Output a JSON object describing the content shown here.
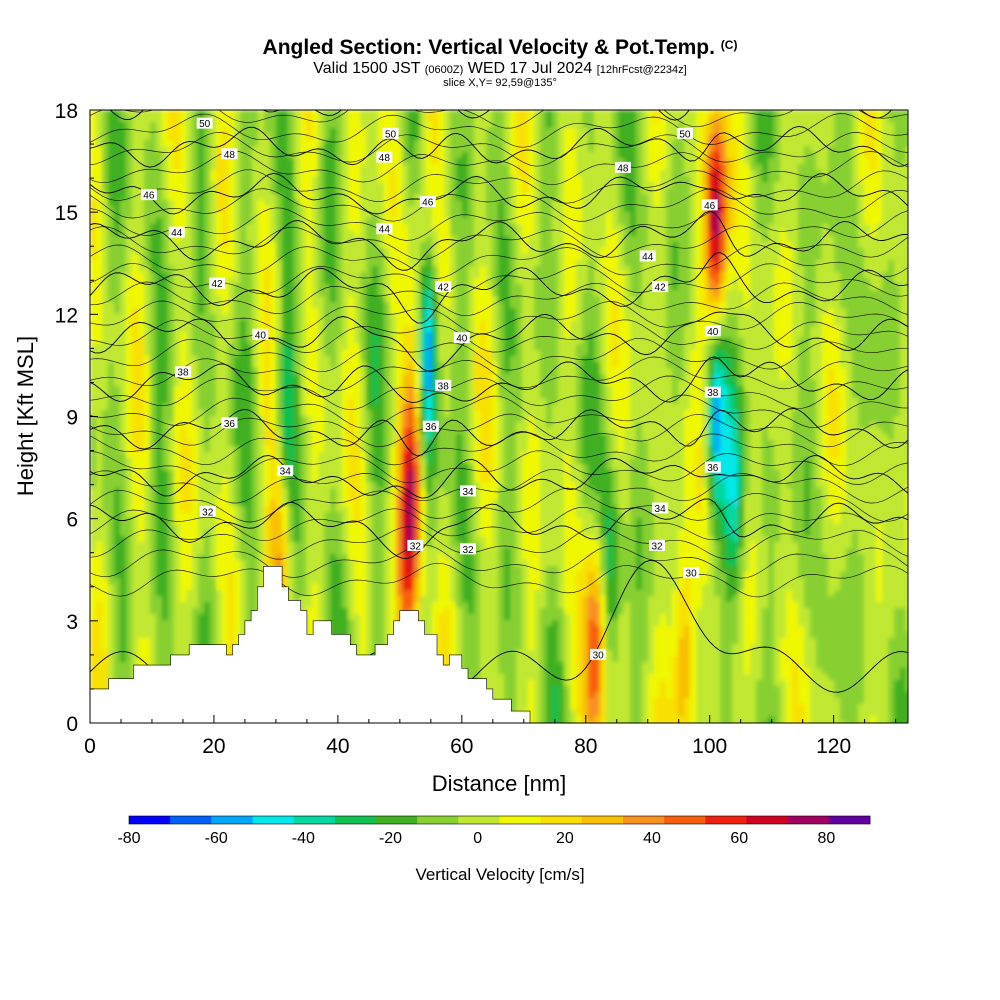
{
  "header": {
    "title": "Angled Section: Vertical Velocity & Pot.Temp.",
    "title_mark": "(C)",
    "valid_prefix": "Valid 1500 JST",
    "valid_zulu": "(0600Z)",
    "valid_date": "WED 17 Jul 2024",
    "forecast": "[12hrFcst@2234z]",
    "slice": "slice X,Y= 92,59@135°"
  },
  "chart_data": {
    "type": "heatmap",
    "xlabel": "Distance [nm]",
    "ylabel": "Height [Kft MSL]",
    "xlim": [
      0,
      132
    ],
    "ylim": [
      0,
      18
    ],
    "x_ticks": [
      0,
      20,
      40,
      60,
      80,
      100,
      120
    ],
    "y_ticks": [
      0,
      3,
      6,
      9,
      12,
      15,
      18
    ],
    "colorbar": {
      "label": "Vertical Velocity [cm/s]",
      "bounds": [
        -80,
        90
      ],
      "step": 10,
      "tick_labels": [
        -80,
        -60,
        -40,
        -20,
        0,
        20,
        40,
        60,
        80
      ],
      "colors": [
        "#0000ff",
        "#0060ff",
        "#00a8ff",
        "#00e8e8",
        "#00d8a0",
        "#10c050",
        "#40b020",
        "#88d030",
        "#c0e830",
        "#f0f800",
        "#f8e000",
        "#f8c000",
        "#f89020",
        "#f86010",
        "#f02010",
        "#d00020",
        "#a00060",
        "#6000a0"
      ]
    },
    "terrain": [
      [
        0,
        1
      ],
      [
        3,
        1
      ],
      [
        3,
        1.3
      ],
      [
        7,
        1.3
      ],
      [
        7,
        1.7
      ],
      [
        13,
        1.7
      ],
      [
        13,
        2
      ],
      [
        16,
        2
      ],
      [
        16,
        2.3
      ],
      [
        22,
        2.3
      ],
      [
        22,
        2
      ],
      [
        23,
        2
      ],
      [
        23,
        2.3
      ],
      [
        24,
        2.3
      ],
      [
        24,
        2.6
      ],
      [
        25,
        2.6
      ],
      [
        25,
        3
      ],
      [
        26,
        3
      ],
      [
        26,
        3.3
      ],
      [
        27,
        3.3
      ],
      [
        27,
        4
      ],
      [
        28,
        4
      ],
      [
        28,
        4.6
      ],
      [
        31,
        4.6
      ],
      [
        31,
        4
      ],
      [
        32,
        4
      ],
      [
        32,
        3.6
      ],
      [
        34,
        3.6
      ],
      [
        34,
        3.3
      ],
      [
        35,
        3.3
      ],
      [
        35,
        2.6
      ],
      [
        36,
        2.6
      ],
      [
        36,
        3
      ],
      [
        39,
        3
      ],
      [
        39,
        2.6
      ],
      [
        42,
        2.6
      ],
      [
        42,
        2.3
      ],
      [
        43,
        2.3
      ],
      [
        43,
        2
      ],
      [
        46,
        2
      ],
      [
        46,
        2.3
      ],
      [
        48,
        2.3
      ],
      [
        48,
        2.6
      ],
      [
        49,
        2.6
      ],
      [
        49,
        3
      ],
      [
        50,
        3
      ],
      [
        50,
        3.3
      ],
      [
        53,
        3.3
      ],
      [
        53,
        3
      ],
      [
        54,
        3
      ],
      [
        54,
        2.6
      ],
      [
        56,
        2.6
      ],
      [
        56,
        2
      ],
      [
        57,
        2
      ],
      [
        57,
        1.7
      ],
      [
        58,
        1.7
      ],
      [
        58,
        2
      ],
      [
        60,
        2
      ],
      [
        60,
        1.6
      ],
      [
        61,
        1.6
      ],
      [
        61,
        1.3
      ],
      [
        64,
        1.3
      ],
      [
        64,
        1
      ],
      [
        65,
        1
      ],
      [
        65,
        0.7
      ],
      [
        68,
        0.7
      ],
      [
        68,
        0.35
      ],
      [
        71,
        0.35
      ],
      [
        71,
        0
      ]
    ],
    "theta_contours": [
      30,
      32,
      34,
      36,
      38,
      40,
      42,
      44,
      46,
      48,
      50
    ],
    "theta_labels": [
      {
        "v": "50",
        "x": 18.5,
        "y": 17.6
      },
      {
        "v": "48",
        "x": 22.5,
        "y": 16.7
      },
      {
        "v": "46",
        "x": 9.5,
        "y": 15.5
      },
      {
        "v": "44",
        "x": 14,
        "y": 14.4
      },
      {
        "v": "42",
        "x": 20.5,
        "y": 12.9
      },
      {
        "v": "40",
        "x": 27.5,
        "y": 11.4
      },
      {
        "v": "38",
        "x": 15,
        "y": 10.3
      },
      {
        "v": "36",
        "x": 22.5,
        "y": 8.8
      },
      {
        "v": "34",
        "x": 31.5,
        "y": 7.4
      },
      {
        "v": "32",
        "x": 19,
        "y": 6.2
      },
      {
        "v": "50",
        "x": 48.5,
        "y": 17.3
      },
      {
        "v": "48",
        "x": 47.5,
        "y": 16.6
      },
      {
        "v": "46",
        "x": 54.5,
        "y": 15.3
      },
      {
        "v": "44",
        "x": 47.5,
        "y": 14.5
      },
      {
        "v": "42",
        "x": 57,
        "y": 12.8
      },
      {
        "v": "40",
        "x": 60,
        "y": 11.3
      },
      {
        "v": "38",
        "x": 57,
        "y": 9.9
      },
      {
        "v": "36",
        "x": 55,
        "y": 8.7
      },
      {
        "v": "34",
        "x": 61,
        "y": 6.8
      },
      {
        "v": "32",
        "x": 61,
        "y": 5.1
      },
      {
        "v": "50",
        "x": 96,
        "y": 17.3
      },
      {
        "v": "48",
        "x": 86,
        "y": 16.3
      },
      {
        "v": "46",
        "x": 100,
        "y": 15.2
      },
      {
        "v": "44",
        "x": 90,
        "y": 13.7
      },
      {
        "v": "42",
        "x": 92,
        "y": 12.8
      },
      {
        "v": "40",
        "x": 100.5,
        "y": 11.5
      },
      {
        "v": "38",
        "x": 100.5,
        "y": 9.7
      },
      {
        "v": "36",
        "x": 100.5,
        "y": 7.5
      },
      {
        "v": "34",
        "x": 92,
        "y": 6.3
      },
      {
        "v": "32",
        "x": 91.5,
        "y": 5.2
      },
      {
        "v": "30",
        "x": 97,
        "y": 4.4
      },
      {
        "v": "30",
        "x": 82,
        "y": 2
      },
      {
        "v": "32",
        "x": 52.5,
        "y": 5.2
      }
    ],
    "updraft_cores": [
      {
        "x": 101,
        "y": 14.5,
        "max": 85
      },
      {
        "x": 52,
        "y": 6.5,
        "max": 60
      },
      {
        "x": 81.5,
        "y": 2,
        "max": 55
      },
      {
        "x": 96,
        "y": 1.7,
        "max": 50
      },
      {
        "x": 31,
        "y": 5.5,
        "max": 45
      }
    ],
    "downdraft_cores": [
      {
        "x": 54.5,
        "y": 11,
        "min": -65
      },
      {
        "x": 101,
        "y": 9,
        "min": -55
      },
      {
        "x": 104,
        "y": 6.5,
        "min": -40
      },
      {
        "x": 84,
        "y": 4.5,
        "min": -35
      },
      {
        "x": 31.5,
        "y": 8.8,
        "min": -40
      }
    ]
  }
}
